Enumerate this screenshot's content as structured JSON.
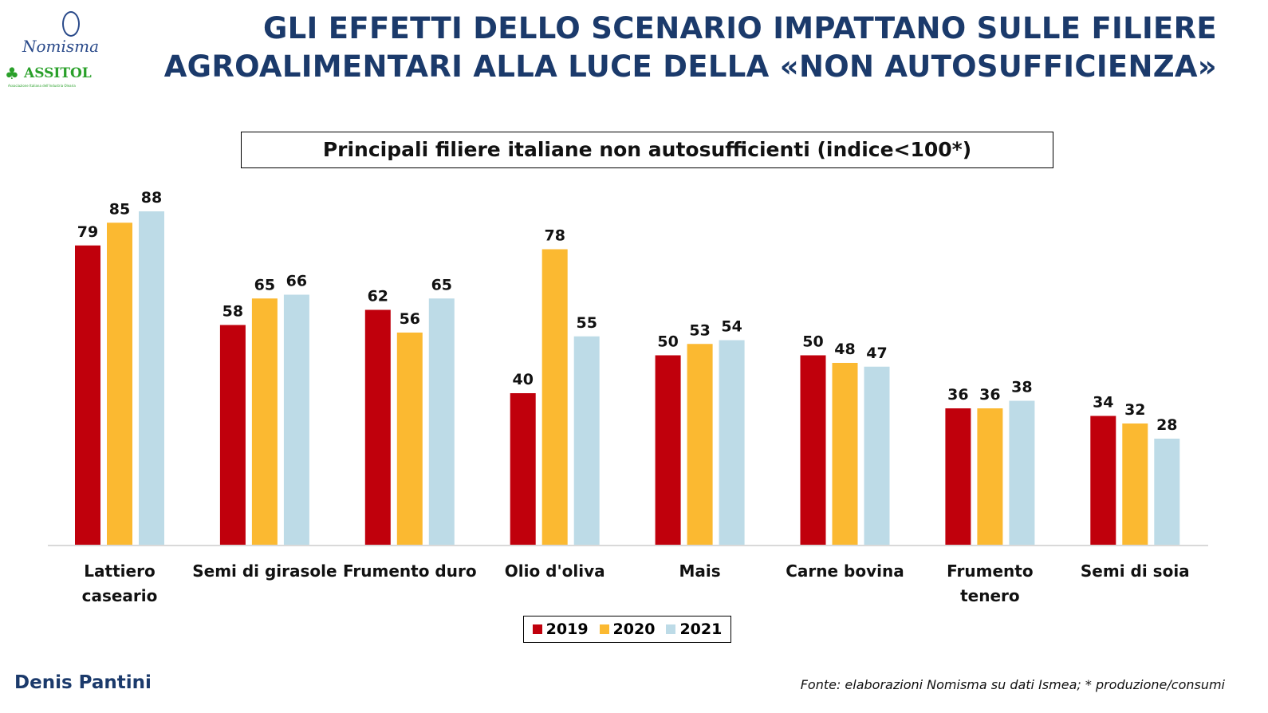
{
  "header": {
    "title_line1": "GLI EFFETTI DELLO SCENARIO IMPATTANO SULLE FILIERE",
    "title_line2": "AGROALIMENTARI ALLA LUCE DELLA «NON AUTOSUFFICIENZA»",
    "logos": [
      "Nomisma",
      "ASSITOL",
      "Associazione Italiana dell'Industria Olearia"
    ]
  },
  "chart_data": {
    "type": "bar",
    "title": "Principali filiere italiane non autosufficienti (indice<100*)",
    "categories": [
      [
        "Lattiero",
        "caseario"
      ],
      [
        "Semi di girasole"
      ],
      [
        "Frumento duro"
      ],
      [
        "Olio d'oliva"
      ],
      [
        "Mais"
      ],
      [
        "Carne bovina"
      ],
      [
        "Frumento",
        "tenero"
      ],
      [
        "Semi di soia"
      ]
    ],
    "series": [
      {
        "name": "2019",
        "color": "#c0000c",
        "values": [
          79,
          58,
          62,
          40,
          50,
          50,
          36,
          34
        ]
      },
      {
        "name": "2020",
        "color": "#fbb931",
        "values": [
          85,
          65,
          56,
          78,
          53,
          48,
          36,
          32
        ]
      },
      {
        "name": "2021",
        "color": "#bddbe7",
        "values": [
          88,
          66,
          65,
          55,
          54,
          47,
          38,
          28
        ]
      }
    ],
    "ylim": [
      0,
      100
    ],
    "grid": false,
    "legend": "bottom-center",
    "data_labels": true
  },
  "footer": {
    "author": "Denis Pantini",
    "source": "Fonte: elaborazioni Nomisma su dati Ismea; * produzione/consumi"
  }
}
